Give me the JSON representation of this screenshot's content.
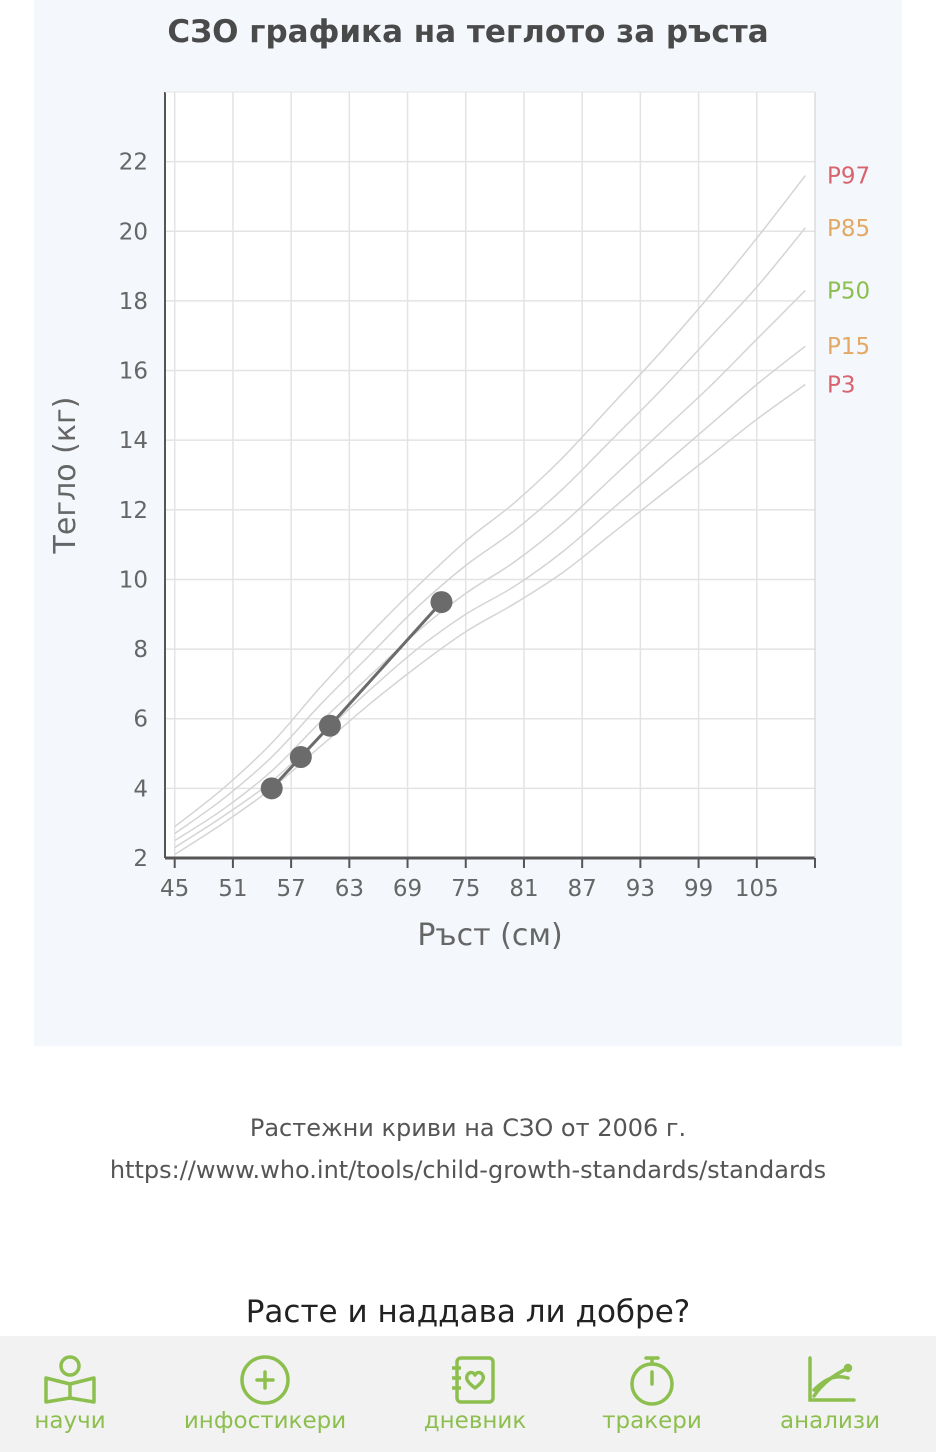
{
  "chart_data": {
    "type": "line",
    "title": "СЗО графика на теглото за ръста",
    "xlabel": "Ръст (см)",
    "ylabel": "Тегло (кг)",
    "xlim": [
      44,
      111
    ],
    "ylim": [
      2,
      24
    ],
    "x_ticks": [
      "45",
      "51",
      "57",
      "63",
      "69",
      "75",
      "81",
      "87",
      "93",
      "99",
      "105"
    ],
    "y_ticks": [
      "2",
      "4",
      "6",
      "8",
      "10",
      "12",
      "14",
      "16",
      "18",
      "20",
      "22"
    ],
    "grid": true,
    "percentiles": [
      {
        "name": "P97",
        "color": "#d9646e",
        "x": [
          45,
          50,
          55,
          60,
          65,
          70,
          75,
          80,
          85,
          90,
          95,
          100,
          105,
          110
        ],
        "y": [
          2.9,
          4.0,
          5.3,
          6.9,
          8.4,
          9.8,
          11.1,
          12.2,
          13.5,
          15.0,
          16.5,
          18.1,
          19.8,
          21.6
        ]
      },
      {
        "name": "P85",
        "color": "#e3a865",
        "x": [
          45,
          50,
          55,
          60,
          65,
          70,
          75,
          80,
          85,
          90,
          95,
          100,
          105,
          110
        ],
        "y": [
          2.7,
          3.7,
          4.9,
          6.4,
          7.8,
          9.2,
          10.4,
          11.4,
          12.6,
          14.0,
          15.4,
          16.9,
          18.4,
          20.1
        ]
      },
      {
        "name": "P50",
        "color": "#8dbf4f",
        "x": [
          45,
          50,
          55,
          60,
          65,
          70,
          75,
          80,
          85,
          90,
          95,
          100,
          105,
          110
        ],
        "y": [
          2.5,
          3.4,
          4.5,
          5.9,
          7.2,
          8.5,
          9.6,
          10.5,
          11.6,
          12.9,
          14.2,
          15.5,
          16.9,
          18.3
        ]
      },
      {
        "name": "P15",
        "color": "#e3a865",
        "x": [
          45,
          50,
          55,
          60,
          65,
          70,
          75,
          80,
          85,
          90,
          95,
          100,
          105,
          110
        ],
        "y": [
          2.3,
          3.2,
          4.2,
          5.5,
          6.8,
          8.0,
          9.0,
          9.8,
          10.8,
          12.0,
          13.2,
          14.4,
          15.6,
          16.7
        ]
      },
      {
        "name": "P3",
        "color": "#d9646e",
        "x": [
          45,
          50,
          55,
          60,
          65,
          70,
          75,
          80,
          85,
          90,
          95,
          100,
          105,
          110
        ],
        "y": [
          2.1,
          3.0,
          4.0,
          5.2,
          6.4,
          7.5,
          8.5,
          9.3,
          10.2,
          11.3,
          12.4,
          13.5,
          14.6,
          15.6
        ]
      }
    ],
    "measurements": {
      "x": [
        55,
        58,
        61,
        72.5
      ],
      "y": [
        4.0,
        4.9,
        5.8,
        9.35
      ],
      "color": "#6b6b6b"
    }
  },
  "source": {
    "title": "Растежни криви на СЗО от 2006 г.",
    "url": "https://www.who.int/tools/child-growth-standards/standards"
  },
  "question": "Расте и наддава ли добре?",
  "nav": {
    "items": [
      {
        "label": "научи",
        "icon": "book-reader-icon"
      },
      {
        "label": "инфостикери",
        "icon": "plus-circle-icon"
      },
      {
        "label": "дневник",
        "icon": "notebook-heart-icon"
      },
      {
        "label": "тракери",
        "icon": "stopwatch-icon"
      },
      {
        "label": "анализи",
        "icon": "growth-chart-icon"
      }
    ],
    "color": "#8dbf4f"
  }
}
